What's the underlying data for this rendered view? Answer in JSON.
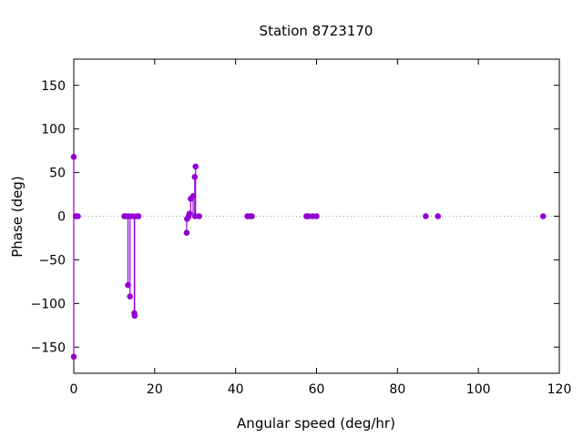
{
  "chart_data": {
    "type": "scatter",
    "style": "impulses-with-points",
    "title": "Station 8723170",
    "xlabel": "Angular speed (deg/hr)",
    "ylabel": "Phase (deg)",
    "xlim": [
      0,
      120
    ],
    "ylim": [
      -180,
      180
    ],
    "xticks": [
      0,
      20,
      40,
      60,
      80,
      100,
      120
    ],
    "yticks": [
      -150,
      -100,
      -50,
      0,
      50,
      100,
      150
    ],
    "zero_line": true,
    "grid": false,
    "color": "#9400d3",
    "points": [
      {
        "x": 0.0,
        "y": 68
      },
      {
        "x": 0.0,
        "y": -161
      },
      {
        "x": 0.5,
        "y": 0
      },
      {
        "x": 1.0,
        "y": 0
      },
      {
        "x": 12.5,
        "y": 0
      },
      {
        "x": 13.0,
        "y": 0
      },
      {
        "x": 13.4,
        "y": -79
      },
      {
        "x": 13.6,
        "y": 0
      },
      {
        "x": 13.9,
        "y": -92
      },
      {
        "x": 14.5,
        "y": 0
      },
      {
        "x": 14.96,
        "y": -111
      },
      {
        "x": 15.04,
        "y": -114
      },
      {
        "x": 15.5,
        "y": 0
      },
      {
        "x": 16.0,
        "y": 0
      },
      {
        "x": 27.9,
        "y": -19
      },
      {
        "x": 28.0,
        "y": -3
      },
      {
        "x": 28.4,
        "y": 0
      },
      {
        "x": 28.6,
        "y": 3
      },
      {
        "x": 28.9,
        "y": 20
      },
      {
        "x": 29.5,
        "y": 23
      },
      {
        "x": 29.9,
        "y": 45
      },
      {
        "x": 30.0,
        "y": 0
      },
      {
        "x": 30.1,
        "y": 57
      },
      {
        "x": 31.0,
        "y": 0
      },
      {
        "x": 42.9,
        "y": 0
      },
      {
        "x": 43.5,
        "y": 0
      },
      {
        "x": 44.0,
        "y": 0
      },
      {
        "x": 57.5,
        "y": 0
      },
      {
        "x": 58.0,
        "y": 0
      },
      {
        "x": 59.0,
        "y": 0
      },
      {
        "x": 60.0,
        "y": 0
      },
      {
        "x": 87.0,
        "y": 0
      },
      {
        "x": 90.0,
        "y": 0
      },
      {
        "x": 116.0,
        "y": 0
      }
    ]
  }
}
